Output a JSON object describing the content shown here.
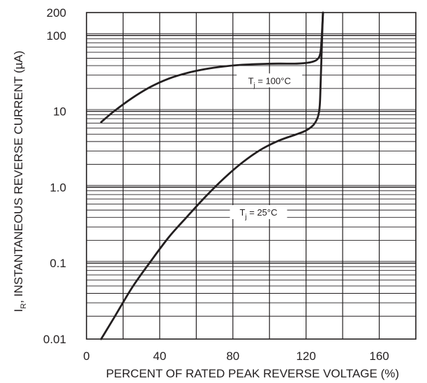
{
  "chart_data": {
    "type": "line",
    "title": "",
    "xlabel": "PERCENT OF RATED PEAK REVERSE VOLTAGE (%)",
    "ylabel_main": "I",
    "ylabel_sub": "R",
    "ylabel_rest": ", INSTANTANEOUS REVERSE CURRENT (µA)",
    "x_scale": "linear",
    "y_scale": "log",
    "xlim": [
      0,
      180
    ],
    "ylim": [
      0.01,
      200
    ],
    "grid": true,
    "x_ticks": [
      {
        "value": 0,
        "label": "0"
      },
      {
        "value": 40,
        "label": "40"
      },
      {
        "value": 80,
        "label": "80"
      },
      {
        "value": 120,
        "label": "120"
      },
      {
        "value": 160,
        "label": "160"
      }
    ],
    "y_ticks": [
      {
        "value": 200,
        "label": "200"
      },
      {
        "value": 100,
        "label": "100"
      },
      {
        "value": 10,
        "label": "10"
      },
      {
        "value": 1,
        "label": "1.0"
      },
      {
        "value": 0.1,
        "label": "0.1"
      },
      {
        "value": 0.01,
        "label": "0.01"
      }
    ],
    "series": [
      {
        "label_main": "T",
        "label_sub": "j",
        "label_rest": " = 100°C",
        "color": "#231f20",
        "points": [
          [
            8,
            7.2
          ],
          [
            15,
            10
          ],
          [
            25,
            15
          ],
          [
            35,
            21
          ],
          [
            45,
            27
          ],
          [
            55,
            32
          ],
          [
            65,
            36
          ],
          [
            75,
            39
          ],
          [
            85,
            41
          ],
          [
            95,
            42
          ],
          [
            105,
            42.5
          ],
          [
            115,
            42.5
          ],
          [
            122,
            44
          ],
          [
            126,
            48
          ],
          [
            127.8,
            58
          ],
          [
            128.5,
            90
          ],
          [
            129.0,
            150
          ],
          [
            129.3,
            200
          ]
        ]
      },
      {
        "label_main": "T",
        "label_sub": "j",
        "label_rest": " = 25°C",
        "color": "#231f20",
        "points": [
          [
            8,
            0.01
          ],
          [
            15,
            0.019
          ],
          [
            25,
            0.048
          ],
          [
            35,
            0.105
          ],
          [
            45,
            0.22
          ],
          [
            55,
            0.41
          ],
          [
            65,
            0.75
          ],
          [
            75,
            1.3
          ],
          [
            85,
            2.1
          ],
          [
            95,
            3.1
          ],
          [
            105,
            4.1
          ],
          [
            115,
            5.0
          ],
          [
            120,
            5.6
          ],
          [
            124,
            6.6
          ],
          [
            126.5,
            8.5
          ],
          [
            127.5,
            12
          ],
          [
            128,
            25
          ],
          [
            128.6,
            70
          ],
          [
            129.2,
            200
          ]
        ]
      }
    ]
  }
}
